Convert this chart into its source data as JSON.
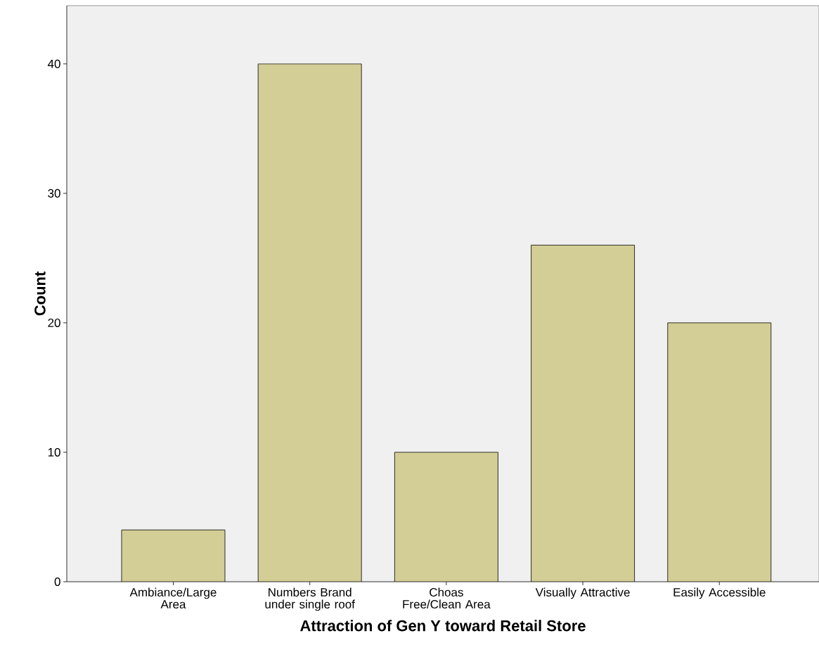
{
  "chart_data": {
    "type": "bar",
    "xlabel": "Attraction of Gen Y toward Retail Store",
    "ylabel": "Count",
    "categories": [
      "Ambiance/Large Area",
      "Numbers Brand under single roof",
      "Choas Free/Clean Area",
      "Visually Attractive",
      "Easily Accessible"
    ],
    "values": [
      4,
      40,
      10,
      26,
      20
    ],
    "color": "#d3ce96",
    "ylim": [
      0,
      44.5
    ],
    "yticks": [
      0,
      10,
      20,
      30,
      40
    ],
    "grid": false
  }
}
